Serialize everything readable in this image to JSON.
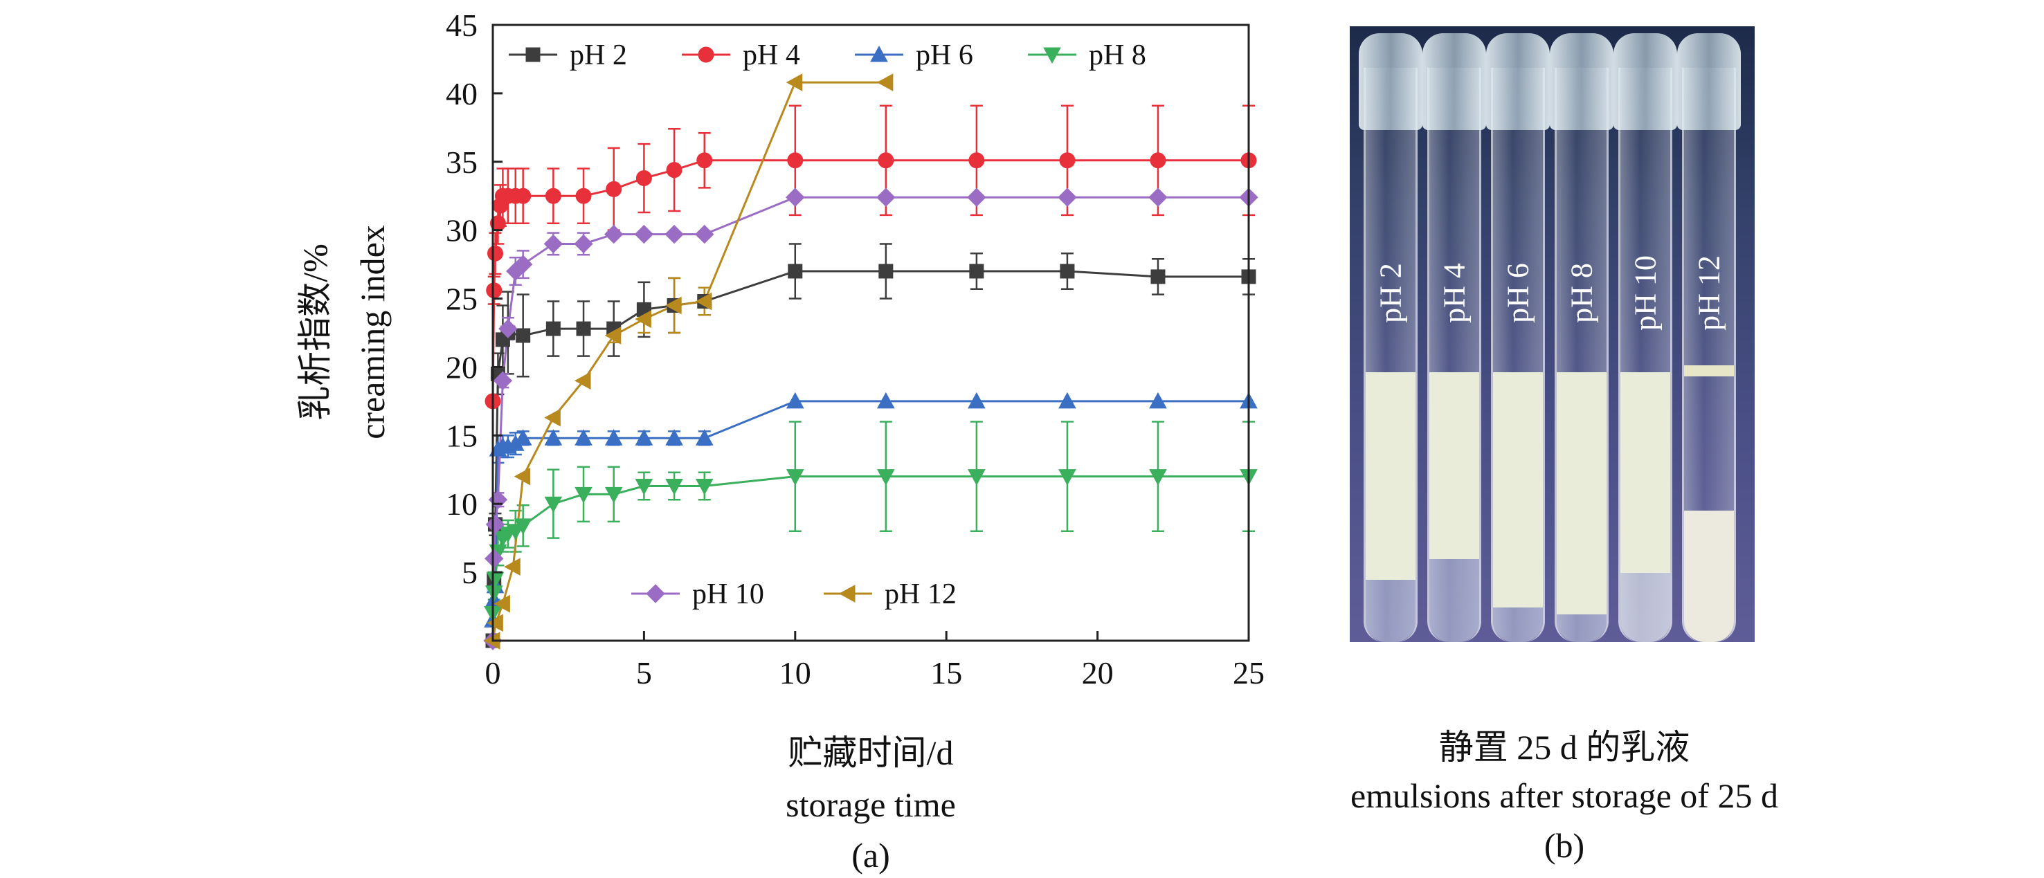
{
  "chart_data": {
    "type": "line",
    "ylabel_cn": "乳析指数/%",
    "ylabel_en": "creaming index",
    "xlabel_cn": "贮藏时间/d",
    "xlabel_en": "storage time",
    "panel_label": "(a)",
    "xlim": [
      0,
      25
    ],
    "ylim": [
      0,
      45
    ],
    "xticks": [
      "0",
      "5",
      "10",
      "15",
      "20",
      "25"
    ],
    "yticks": [
      "5",
      "10",
      "15",
      "20",
      "25",
      "30",
      "35",
      "40",
      "45"
    ],
    "series": [
      {
        "name": "pH 2",
        "color": "#3d3d3d",
        "marker": "square",
        "x": [
          0,
          0.04,
          0.08,
          0.17,
          0.33,
          0.5,
          1,
          2,
          3,
          4,
          5,
          6,
          7,
          10,
          13,
          16,
          19,
          22,
          25
        ],
        "y": [
          0,
          4.5,
          8.5,
          19.5,
          22,
          22.5,
          22.3,
          22.8,
          22.8,
          22.8,
          24.2,
          24.5,
          24.8,
          27,
          27,
          27,
          27,
          26.6,
          26.6
        ],
        "err": [
          0,
          0.5,
          0.8,
          1.5,
          2.5,
          3.0,
          3.0,
          2.0,
          2.0,
          2.0,
          2.0,
          2.0,
          1.0,
          2.0,
          2.0,
          1.3,
          1.3,
          1.3,
          1.3
        ]
      },
      {
        "name": "pH 4",
        "color": "#e8303a",
        "marker": "circle",
        "x": [
          0,
          0.04,
          0.08,
          0.17,
          0.25,
          0.33,
          0.5,
          0.75,
          1,
          2,
          3,
          4,
          5,
          6,
          7,
          10,
          13,
          16,
          19,
          22,
          25
        ],
        "y": [
          17.5,
          25.6,
          28.3,
          30.5,
          31.8,
          32.5,
          32.5,
          32.5,
          32.5,
          32.5,
          32.5,
          33,
          33.8,
          34.4,
          35.1,
          35.1,
          35.1,
          35.1,
          35.1,
          35.1,
          35.1
        ],
        "err": [
          0,
          1.0,
          1.5,
          1.5,
          1.5,
          2.0,
          2.0,
          2.0,
          2.0,
          2.0,
          2.0,
          3.0,
          2.5,
          3.0,
          2.0,
          4.0,
          4.0,
          4.0,
          4.0,
          4.0,
          4.0
        ]
      },
      {
        "name": "pH 6",
        "color": "#3a6fc4",
        "marker": "triangle-up",
        "x": [
          0,
          0.04,
          0.08,
          0.17,
          0.33,
          0.5,
          0.75,
          1,
          2,
          3,
          4,
          5,
          6,
          7,
          10,
          13,
          16,
          19,
          22,
          25
        ],
        "y": [
          1.5,
          3.0,
          4.0,
          14,
          14.2,
          14.2,
          14.4,
          14.8,
          14.8,
          14.8,
          14.8,
          14.8,
          14.8,
          14.8,
          17.5,
          17.5,
          17.5,
          17.5,
          17.5,
          17.5
        ],
        "err": [
          0,
          0,
          0,
          1.0,
          0.8,
          0.8,
          0.8,
          0.5,
          0.5,
          0.5,
          0.5,
          0.5,
          0.5,
          0.5,
          0,
          0,
          0,
          0,
          0,
          0
        ]
      },
      {
        "name": "pH 8",
        "color": "#3aaf5c",
        "marker": "triangle-down",
        "x": [
          0,
          0.04,
          0.08,
          0.17,
          0.33,
          0.5,
          0.75,
          1,
          2,
          3,
          4,
          5,
          6,
          7,
          10,
          13,
          16,
          19,
          22,
          25
        ],
        "y": [
          2.0,
          3.5,
          4.5,
          6.5,
          7.5,
          7.8,
          8.0,
          8.4,
          10,
          10.7,
          10.7,
          11.3,
          11.3,
          11.3,
          12,
          12,
          12,
          12,
          12,
          12
        ],
        "err": [
          0,
          0.5,
          0.5,
          1.0,
          1.0,
          1.0,
          1.5,
          1.5,
          2.5,
          2.0,
          2.0,
          1.0,
          1.0,
          1.0,
          4.0,
          4.0,
          4.0,
          4.0,
          4.0,
          4.0
        ]
      },
      {
        "name": "pH 10",
        "color": "#9b6cc4",
        "marker": "diamond",
        "x": [
          0,
          0.04,
          0.08,
          0.17,
          0.33,
          0.5,
          0.75,
          1,
          2,
          3,
          4,
          5,
          6,
          7,
          10,
          13,
          16,
          19,
          22,
          25
        ],
        "y": [
          0,
          6.0,
          8.5,
          10.3,
          19,
          22.8,
          27,
          27.5,
          29,
          29,
          29.7,
          29.7,
          29.7,
          29.7,
          32.4,
          32.4,
          32.4,
          32.4,
          32.4,
          32.4
        ],
        "err": [
          0,
          0,
          0,
          0.5,
          0.5,
          0.8,
          1.0,
          1.0,
          0.8,
          0.8,
          0,
          0,
          0,
          0,
          0,
          0,
          0,
          0,
          0,
          0
        ]
      },
      {
        "name": "pH 12",
        "color": "#b8891c",
        "marker": "triangle-left",
        "x": [
          0,
          0.1,
          0.33,
          0.67,
          1,
          2,
          3,
          4,
          5,
          6,
          7,
          10,
          13
        ],
        "y": [
          0,
          1.3,
          2.7,
          5.4,
          12,
          16.3,
          19,
          22.3,
          23.5,
          24.5,
          24.8,
          40.8,
          40.8
        ],
        "err": [
          0,
          0,
          0,
          0,
          0,
          0,
          0,
          0.5,
          1.0,
          2.0,
          1.0,
          0,
          0
        ]
      }
    ]
  },
  "photo": {
    "labels": [
      "pH 2",
      "pH 4",
      "pH 6",
      "pH 8",
      "pH 10",
      "pH 12"
    ],
    "caption_cn": "静置 25 d 的乳液",
    "caption_en": "emulsions after storage of 25 d",
    "panel_label": "(b)"
  }
}
